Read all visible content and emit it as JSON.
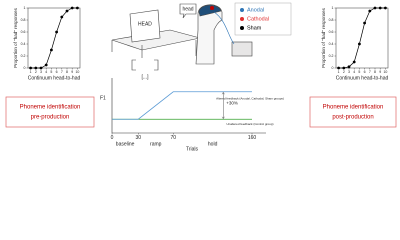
{
  "pre_test": {
    "chart": {
      "type": "line",
      "y_label": "Proportion of \"had\" responses",
      "x_label": "Continuum head-to-had",
      "x": [
        1,
        2,
        3,
        4,
        5,
        6,
        7,
        8,
        9,
        10
      ],
      "values": [
        0,
        0,
        0,
        0.05,
        0.3,
        0.6,
        0.85,
        0.95,
        1,
        1
      ],
      "color": "#000000",
      "xlim": [
        0.5,
        10.5
      ],
      "xticks": [
        1,
        2,
        3,
        4,
        5,
        6,
        7,
        8,
        9,
        10
      ],
      "ylim": [
        0,
        1
      ],
      "yticks": [
        0,
        0.2,
        0.4,
        0.6,
        0.8,
        1
      ]
    },
    "caption": [
      "Phoneme identification",
      "pre-production"
    ]
  },
  "post_test": {
    "chart": {
      "type": "line",
      "y_label": "Proportion of \"had\" responses",
      "x_label": "Continuum head-to-had",
      "x": [
        1,
        2,
        3,
        4,
        5,
        6,
        7,
        8,
        9,
        10
      ],
      "values": [
        0,
        0,
        0.02,
        0.1,
        0.4,
        0.75,
        0.95,
        1,
        1,
        1
      ],
      "color": "#000000",
      "xlim": [
        0.5,
        10.5
      ],
      "xticks": [
        1,
        2,
        3,
        4,
        5,
        6,
        7,
        8,
        9,
        10
      ],
      "ylim": [
        0,
        1
      ],
      "yticks": [
        0,
        0.2,
        0.4,
        0.6,
        0.8,
        1
      ]
    },
    "caption": [
      "Phoneme identification",
      "post-production"
    ]
  },
  "setup": {
    "screen_text": "HEAD",
    "speech": "head",
    "ellipsis": "[...]",
    "legend": [
      {
        "name": "Anodal",
        "color": "#2e75b6"
      },
      {
        "name": "Cathodal",
        "color": "#e03030"
      },
      {
        "name": "Sham",
        "color": "#000000"
      }
    ]
  },
  "feedback": {
    "type": "line",
    "y_label": "F1",
    "x_label": "Trials",
    "x": [
      0,
      30,
      70,
      160
    ],
    "series": [
      {
        "name": "Unaltered feedback (Control group)",
        "color": "#33a02c",
        "values": [
          0,
          0,
          0,
          0
        ]
      },
      {
        "name": "Altered feedback (Anodal, Cathodal, Sham groups)",
        "color": "#5b9bd5",
        "values": [
          0,
          0,
          30,
          30
        ]
      }
    ],
    "xlim": [
      0,
      160
    ],
    "xticks": [
      0,
      30,
      70,
      160
    ],
    "ylim": [
      -15,
      45
    ],
    "annotation": "+30%",
    "phases": [
      {
        "label": "baseline",
        "range": [
          0,
          30
        ]
      },
      {
        "label": "ramp",
        "range": [
          30,
          70
        ]
      },
      {
        "label": "hold",
        "range": [
          70,
          160
        ]
      }
    ]
  }
}
